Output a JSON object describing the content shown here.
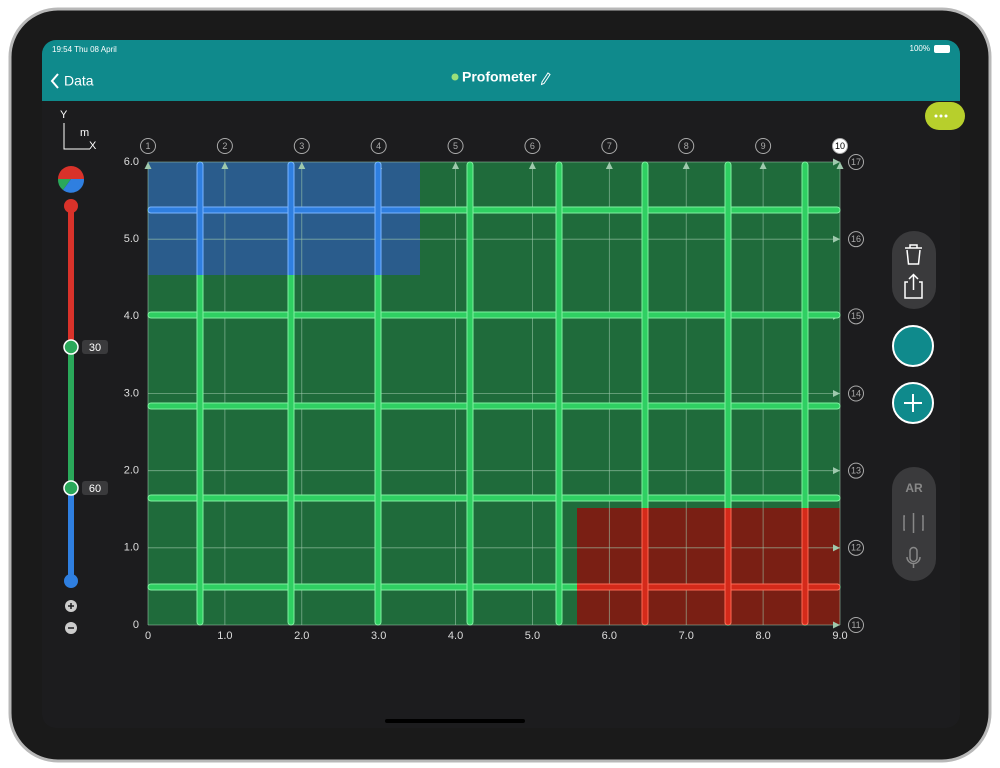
{
  "status_bar": {
    "time": "19:54 Thu 08 April",
    "battery": "100%"
  },
  "nav": {
    "back": "Data",
    "title": "Profometer"
  },
  "axis_legend": {
    "y": "Y",
    "unit": "m",
    "x": "X"
  },
  "depth_slider": {
    "labels": [
      "30",
      "60"
    ]
  },
  "plot": {
    "x_labels": [
      "0",
      "1.0",
      "2.0",
      "3.0",
      "4.0",
      "5.0",
      "6.0",
      "7.0",
      "8.0",
      "9.0"
    ],
    "y_labels": [
      "0",
      "1.0",
      "2.0",
      "3.0",
      "4.0",
      "5.0",
      "6.0"
    ],
    "column_markers": [
      "1",
      "2",
      "3",
      "4",
      "5",
      "6",
      "7",
      "8",
      "9",
      "10"
    ],
    "row_markers": [
      "11",
      "12",
      "13",
      "14",
      "15",
      "16",
      "17"
    ]
  },
  "toolbar": {
    "ar": "AR"
  }
}
